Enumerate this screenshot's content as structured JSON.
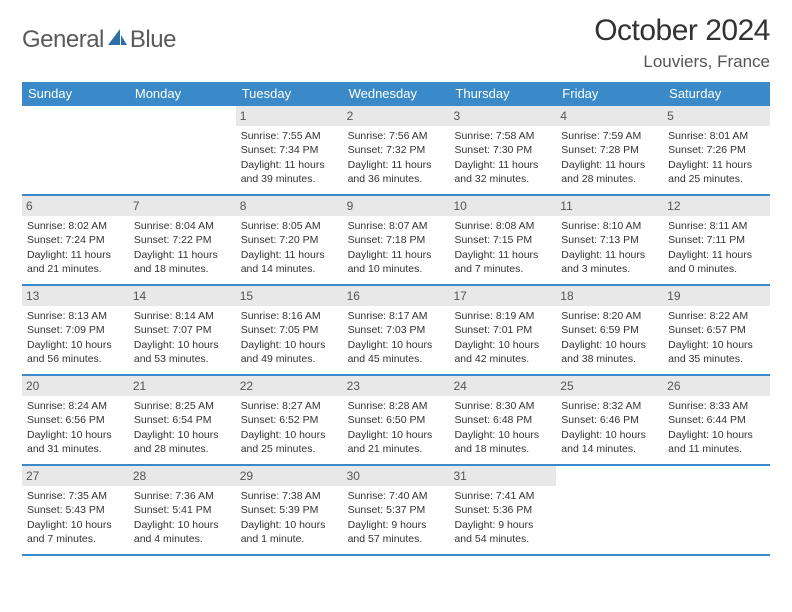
{
  "logo": {
    "word1": "General",
    "word2": "Blue"
  },
  "title": "October 2024",
  "location": "Louviers, France",
  "colors": {
    "header_bg": "#3a89c9",
    "header_text": "#ffffff",
    "daynum_bg": "#e8e8e8",
    "daynum_text": "#555555",
    "border": "#3a89c9",
    "body_text": "#333333"
  },
  "dow": [
    "Sunday",
    "Monday",
    "Tuesday",
    "Wednesday",
    "Thursday",
    "Friday",
    "Saturday"
  ],
  "weeks": [
    [
      {
        "n": "",
        "lines": []
      },
      {
        "n": "",
        "lines": []
      },
      {
        "n": "1",
        "lines": [
          "Sunrise: 7:55 AM",
          "Sunset: 7:34 PM",
          "Daylight: 11 hours and 39 minutes."
        ]
      },
      {
        "n": "2",
        "lines": [
          "Sunrise: 7:56 AM",
          "Sunset: 7:32 PM",
          "Daylight: 11 hours and 36 minutes."
        ]
      },
      {
        "n": "3",
        "lines": [
          "Sunrise: 7:58 AM",
          "Sunset: 7:30 PM",
          "Daylight: 11 hours and 32 minutes."
        ]
      },
      {
        "n": "4",
        "lines": [
          "Sunrise: 7:59 AM",
          "Sunset: 7:28 PM",
          "Daylight: 11 hours and 28 minutes."
        ]
      },
      {
        "n": "5",
        "lines": [
          "Sunrise: 8:01 AM",
          "Sunset: 7:26 PM",
          "Daylight: 11 hours and 25 minutes."
        ]
      }
    ],
    [
      {
        "n": "6",
        "lines": [
          "Sunrise: 8:02 AM",
          "Sunset: 7:24 PM",
          "Daylight: 11 hours and 21 minutes."
        ]
      },
      {
        "n": "7",
        "lines": [
          "Sunrise: 8:04 AM",
          "Sunset: 7:22 PM",
          "Daylight: 11 hours and 18 minutes."
        ]
      },
      {
        "n": "8",
        "lines": [
          "Sunrise: 8:05 AM",
          "Sunset: 7:20 PM",
          "Daylight: 11 hours and 14 minutes."
        ]
      },
      {
        "n": "9",
        "lines": [
          "Sunrise: 8:07 AM",
          "Sunset: 7:18 PM",
          "Daylight: 11 hours and 10 minutes."
        ]
      },
      {
        "n": "10",
        "lines": [
          "Sunrise: 8:08 AM",
          "Sunset: 7:15 PM",
          "Daylight: 11 hours and 7 minutes."
        ]
      },
      {
        "n": "11",
        "lines": [
          "Sunrise: 8:10 AM",
          "Sunset: 7:13 PM",
          "Daylight: 11 hours and 3 minutes."
        ]
      },
      {
        "n": "12",
        "lines": [
          "Sunrise: 8:11 AM",
          "Sunset: 7:11 PM",
          "Daylight: 11 hours and 0 minutes."
        ]
      }
    ],
    [
      {
        "n": "13",
        "lines": [
          "Sunrise: 8:13 AM",
          "Sunset: 7:09 PM",
          "Daylight: 10 hours and 56 minutes."
        ]
      },
      {
        "n": "14",
        "lines": [
          "Sunrise: 8:14 AM",
          "Sunset: 7:07 PM",
          "Daylight: 10 hours and 53 minutes."
        ]
      },
      {
        "n": "15",
        "lines": [
          "Sunrise: 8:16 AM",
          "Sunset: 7:05 PM",
          "Daylight: 10 hours and 49 minutes."
        ]
      },
      {
        "n": "16",
        "lines": [
          "Sunrise: 8:17 AM",
          "Sunset: 7:03 PM",
          "Daylight: 10 hours and 45 minutes."
        ]
      },
      {
        "n": "17",
        "lines": [
          "Sunrise: 8:19 AM",
          "Sunset: 7:01 PM",
          "Daylight: 10 hours and 42 minutes."
        ]
      },
      {
        "n": "18",
        "lines": [
          "Sunrise: 8:20 AM",
          "Sunset: 6:59 PM",
          "Daylight: 10 hours and 38 minutes."
        ]
      },
      {
        "n": "19",
        "lines": [
          "Sunrise: 8:22 AM",
          "Sunset: 6:57 PM",
          "Daylight: 10 hours and 35 minutes."
        ]
      }
    ],
    [
      {
        "n": "20",
        "lines": [
          "Sunrise: 8:24 AM",
          "Sunset: 6:56 PM",
          "Daylight: 10 hours and 31 minutes."
        ]
      },
      {
        "n": "21",
        "lines": [
          "Sunrise: 8:25 AM",
          "Sunset: 6:54 PM",
          "Daylight: 10 hours and 28 minutes."
        ]
      },
      {
        "n": "22",
        "lines": [
          "Sunrise: 8:27 AM",
          "Sunset: 6:52 PM",
          "Daylight: 10 hours and 25 minutes."
        ]
      },
      {
        "n": "23",
        "lines": [
          "Sunrise: 8:28 AM",
          "Sunset: 6:50 PM",
          "Daylight: 10 hours and 21 minutes."
        ]
      },
      {
        "n": "24",
        "lines": [
          "Sunrise: 8:30 AM",
          "Sunset: 6:48 PM",
          "Daylight: 10 hours and 18 minutes."
        ]
      },
      {
        "n": "25",
        "lines": [
          "Sunrise: 8:32 AM",
          "Sunset: 6:46 PM",
          "Daylight: 10 hours and 14 minutes."
        ]
      },
      {
        "n": "26",
        "lines": [
          "Sunrise: 8:33 AM",
          "Sunset: 6:44 PM",
          "Daylight: 10 hours and 11 minutes."
        ]
      }
    ],
    [
      {
        "n": "27",
        "lines": [
          "Sunrise: 7:35 AM",
          "Sunset: 5:43 PM",
          "Daylight: 10 hours and 7 minutes."
        ]
      },
      {
        "n": "28",
        "lines": [
          "Sunrise: 7:36 AM",
          "Sunset: 5:41 PM",
          "Daylight: 10 hours and 4 minutes."
        ]
      },
      {
        "n": "29",
        "lines": [
          "Sunrise: 7:38 AM",
          "Sunset: 5:39 PM",
          "Daylight: 10 hours and 1 minute."
        ]
      },
      {
        "n": "30",
        "lines": [
          "Sunrise: 7:40 AM",
          "Sunset: 5:37 PM",
          "Daylight: 9 hours and 57 minutes."
        ]
      },
      {
        "n": "31",
        "lines": [
          "Sunrise: 7:41 AM",
          "Sunset: 5:36 PM",
          "Daylight: 9 hours and 54 minutes."
        ]
      },
      {
        "n": "",
        "lines": []
      },
      {
        "n": "",
        "lines": []
      }
    ]
  ]
}
